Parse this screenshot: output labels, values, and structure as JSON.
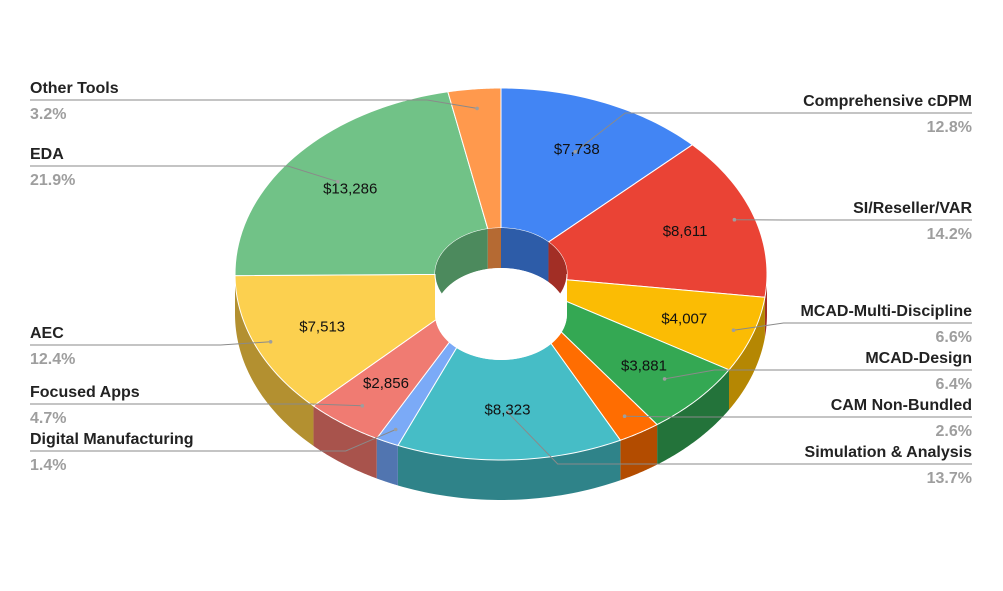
{
  "chart_data": {
    "type": "pie",
    "style": "3d-donut",
    "legend": "callout labels left and right",
    "slices": [
      {
        "label": "Comprehensive cDPM",
        "value": 7738,
        "value_label": "$7,738",
        "percent": "12.8%",
        "color": "#4285f4",
        "side_color": "#2d5ca8"
      },
      {
        "label": "SI/Reseller/VAR",
        "value": 8611,
        "value_label": "$8,611",
        "percent": "14.2%",
        "color": "#ea4335",
        "side_color": "#a22e25"
      },
      {
        "label": "MCAD-Multi-Discipline",
        "value": 4007,
        "value_label": "$4,007",
        "percent": "6.6%",
        "color": "#fbbc04",
        "side_color": "#b58703"
      },
      {
        "label": "MCAD-Design",
        "value": 3881,
        "value_label": "$3,881",
        "percent": "6.4%",
        "color": "#34a853",
        "side_color": "#23733a"
      },
      {
        "label": "CAM Non-Bundled",
        "value": 1560,
        "value_label": "",
        "percent": "2.6%",
        "color": "#ff6d01",
        "side_color": "#b34c00"
      },
      {
        "label": "Simulation & Analysis",
        "value": 8323,
        "value_label": "$8,323",
        "percent": "13.7%",
        "color": "#46bdc6",
        "side_color": "#2f8389"
      },
      {
        "label": "Digital Manufacturing",
        "value": 850,
        "value_label": "",
        "percent": "1.4%",
        "color": "#7baaf7",
        "side_color": "#5175b0"
      },
      {
        "label": "Focused Apps",
        "value": 2856,
        "value_label": "$2,856",
        "percent": "4.7%",
        "color": "#f07b72",
        "side_color": "#a8534c"
      },
      {
        "label": "AEC",
        "value": 7513,
        "value_label": "$7,513",
        "percent": "12.4%",
        "color": "#fcd04f",
        "side_color": "#b39030"
      },
      {
        "label": "EDA",
        "value": 13286,
        "value_label": "$13,286",
        "percent": "21.9%",
        "color": "#71c287",
        "side_color": "#4c8a5d"
      },
      {
        "label": "Other Tools",
        "value": 1940,
        "value_label": "",
        "percent": "3.2%",
        "color": "#ff994d",
        "side_color": "#b56a33"
      }
    ]
  }
}
